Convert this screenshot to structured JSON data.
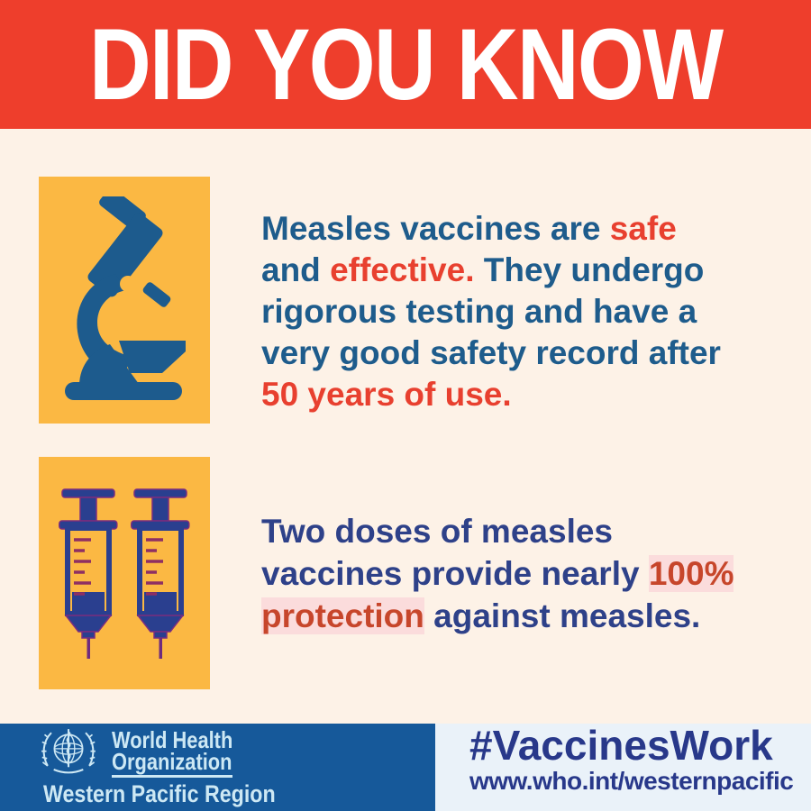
{
  "header": {
    "title": "DID YOU KNOW"
  },
  "colors": {
    "header_bg": "#EE3E2C",
    "body_bg": "#FDF2E7",
    "panel_bg": "#FBB843",
    "fact1_base": "#1E5C8C",
    "fact1_accent": "#E8402F",
    "fact2_base": "#2E4189",
    "fact2_accent": "#C7462B",
    "fact2_highlight": "#FBDCDC",
    "footer_bg": "#16599A",
    "footer_text": "#CDE8F4",
    "campaign_bg": "#EAF2F9",
    "campaign_text": "#28388A",
    "icon_blue": "#1D5B8D",
    "syringe_blue": "#2A3F8F",
    "syringe_purple": "#7B2D7F"
  },
  "icons": {
    "fact1": "microscope-icon",
    "fact2": "syringe-icon",
    "footer": "who-emblem-icon"
  },
  "facts": [
    {
      "icon": "microscope-icon",
      "lines": [
        [
          {
            "t": "Measles vaccines are ",
            "s": "base"
          },
          {
            "t": "safe",
            "s": "accent"
          }
        ],
        [
          {
            "t": "and ",
            "s": "base"
          },
          {
            "t": "effective.",
            "s": "accent"
          },
          {
            "t": " They undergo",
            "s": "base"
          }
        ],
        [
          {
            "t": "rigorous testing and have a",
            "s": "base"
          }
        ],
        [
          {
            "t": "very good safety record after",
            "s": "base"
          }
        ],
        [
          {
            "t": "50 years of use.",
            "s": "accent"
          }
        ]
      ]
    },
    {
      "icon": "syringe-icon",
      "lines": [
        [
          {
            "t": "Two doses of measles",
            "s": "base"
          }
        ],
        [
          {
            "t": "vaccines provide nearly ",
            "s": "base"
          },
          {
            "t": "100%",
            "s": "accent"
          }
        ],
        [
          {
            "t": "protection",
            "s": "accent"
          },
          {
            "t": " against measles.",
            "s": "base"
          }
        ]
      ]
    }
  ],
  "footer": {
    "who": {
      "name_line1": "World Health",
      "name_line2": "Organization",
      "region": "Western Pacific Region"
    },
    "campaign": {
      "hashtag": "#VaccinesWork",
      "url": "www.who.int/westernpacific"
    }
  }
}
